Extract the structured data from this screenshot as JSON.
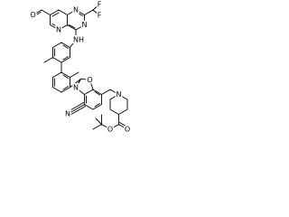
{
  "atoms": [
    {
      "label": "O"
    },
    {
      "label": "F"
    },
    {
      "label": "F"
    },
    {
      "label": "N"
    },
    {
      "label": "N"
    },
    {
      "label": "N"
    },
    {
      "label": "NH"
    },
    {
      "label": "N"
    },
    {
      "label": "O"
    },
    {
      "label": "N"
    },
    {
      "label": "N"
    },
    {
      "label": "O"
    },
    {
      "label": "O"
    }
  ]
}
